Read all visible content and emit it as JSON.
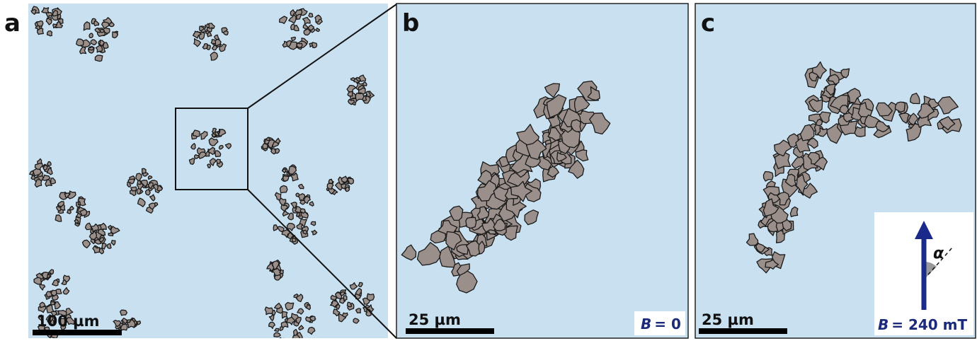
{
  "panels": [
    {
      "label": "a",
      "scale_bar": "100 µm"
    },
    {
      "label": "b",
      "scale_bar": "25 µm",
      "field": {
        "symbol": "B",
        "value": "= 0"
      }
    },
    {
      "label": "c",
      "scale_bar": "25 µm",
      "field": {
        "symbol": "B",
        "value": "= 240 mT"
      },
      "angle": "α"
    }
  ]
}
